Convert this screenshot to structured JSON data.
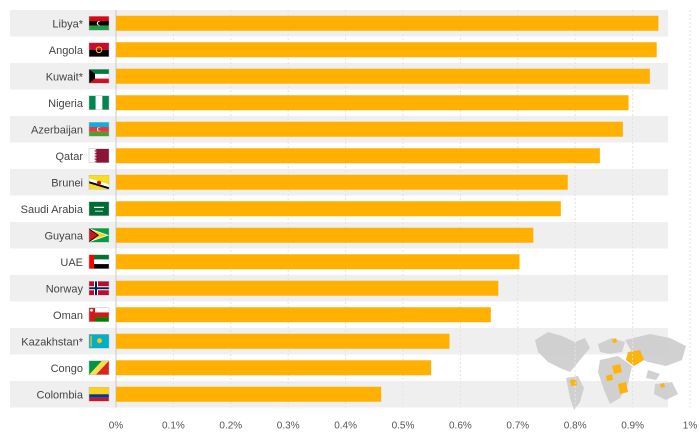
{
  "chart_data": {
    "type": "bar",
    "orientation": "horizontal",
    "title": "",
    "xlabel": "",
    "ylabel": "",
    "categories": [
      "Libya*",
      "Angola",
      "Kuwait*",
      "Nigeria",
      "Azerbaijan",
      "Qatar",
      "Brunei",
      "Saudi Arabia",
      "Guyana",
      "UAE",
      "Norway",
      "Oman",
      "Kazakhstan*",
      "Congo",
      "Colombia"
    ],
    "values": [
      0.945,
      0.942,
      0.93,
      0.893,
      0.883,
      0.843,
      0.787,
      0.775,
      0.727,
      0.703,
      0.666,
      0.653,
      0.581,
      0.549,
      0.462
    ],
    "xlim": [
      0,
      1
    ],
    "x_ticks": [
      0,
      0.1,
      0.2,
      0.3,
      0.4,
      0.5,
      0.6,
      0.7,
      0.8,
      0.9,
      1.0
    ],
    "x_tick_labels": [
      "0%",
      "0.1%",
      "0.2%",
      "0.3%",
      "0.4%",
      "0.5%",
      "0.6%",
      "0.7%",
      "0.8%",
      "0.9%",
      "1%"
    ],
    "grid": "vertical",
    "bar_color": "#FFB000",
    "band_color": "#EFEFEF",
    "flags": [
      "flag-libya",
      "flag-angola",
      "flag-kuwait",
      "flag-nigeria",
      "flag-azerbaijan",
      "flag-qatar",
      "flag-brunei",
      "flag-saudi-arabia",
      "flag-guyana",
      "flag-uae",
      "flag-norway",
      "flag-oman",
      "flag-kazakhstan",
      "flag-congo",
      "flag-colombia"
    ]
  }
}
